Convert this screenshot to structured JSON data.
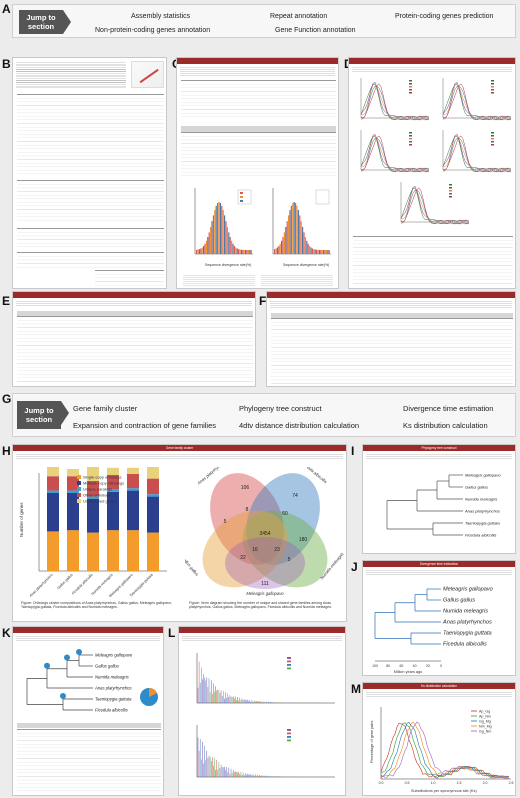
{
  "top_nav": {
    "jump_label": "Jump to section",
    "links": [
      "Assembly statistics",
      "Repeat annotation",
      "Protein-coding genes prediction",
      "Non-protein-coding genes annotation",
      "Gene Function annotation"
    ]
  },
  "bottom_nav": {
    "jump_label": "Jump to section",
    "links": [
      "Gene family cluster",
      "Phylogeny tree construct",
      "Divergence time estimation",
      "Expansion and contraction of gene families",
      "4dtv distance distribution calculation",
      "Ks distribution calculation"
    ]
  },
  "letters": [
    "A",
    "B",
    "C",
    "D",
    "E",
    "F",
    "G",
    "H",
    "I",
    "J",
    "K",
    "L",
    "M"
  ],
  "panel_h": {
    "header": "Gene family cluster",
    "ylabel": "Number of genes",
    "legend": [
      "Single-copy orthologs",
      "Multiple-copy orthologs",
      "Unique paralogs",
      "Other orthologs",
      "Unclustered genes"
    ],
    "species": [
      "Anas platyrhynchos",
      "Gallus gallus",
      "Ficedula albicollis",
      "Numida meleagris",
      "Meleagris gallopavo",
      "Taeniopygia guttata"
    ],
    "bar_caption": "Figure: Orthologs cluster compositions of Anas platyrhynchos, Gallus gallus, Meleagris gallopavo, Taeniopygia guttata, Ficedula albicollis and Numida meleagris.",
    "venn_caption": "Figure: Venn diagram showing the number of unique and shared gene families among Anas platyrhynchos, Gallus gallus, Meleagris gallopavo, Ficedula albicollis and Numida meleagris.",
    "venn_labels": [
      "Anas platyrhynchos",
      "Ficedula albicollis",
      "Gallus gallus",
      "Numida meleagris",
      "Meleagris gallopavo"
    ],
    "venn_numbers": [
      "106",
      "74",
      "5",
      "3454",
      "180",
      "111",
      "8",
      "60",
      "22",
      "5",
      "16",
      "23"
    ]
  },
  "panel_i": {
    "header": "Phylogeny tree construct",
    "taxa": [
      "Meleagris gallopavo",
      "Gallus gallus",
      "Numida meleagris",
      "Anas platyrhynchos",
      "Taeniopygia guttata",
      "Ficedula albicollis"
    ]
  },
  "panel_j": {
    "header": "Divergence time estimation",
    "taxa": [
      "Meleagris gallopavo",
      "Gallus gallus",
      "Numida meleagris",
      "Anas platyrhynchos",
      "Taeniopygia guttata",
      "Ficedula albicollis"
    ],
    "axis_label": "Million years ago",
    "ticks": [
      "100",
      "80",
      "60",
      "40",
      "20",
      "0"
    ]
  },
  "panel_m": {
    "header": "Ks distribution calculation",
    "xlabel": "Substitutions per synonymous site (Ks)",
    "ylabel": "Percentage of gene pairs",
    "legend": [
      "Ap_Gg",
      "Ap_Nm",
      "Gg_Mg",
      "Nm_Mg",
      "Gg_Nm"
    ],
    "ticks": [
      "0.0",
      "0.5",
      "1.0",
      "1.5",
      "2.0",
      "2.5"
    ]
  },
  "colors": {
    "header_red": "#9b2b2b",
    "single_copy": "#f39c2b",
    "multiple_copy": "#2b3f8f",
    "unique": "#3aa0d8",
    "other": "#c94f4f",
    "unclustered": "#e9d27c"
  }
}
